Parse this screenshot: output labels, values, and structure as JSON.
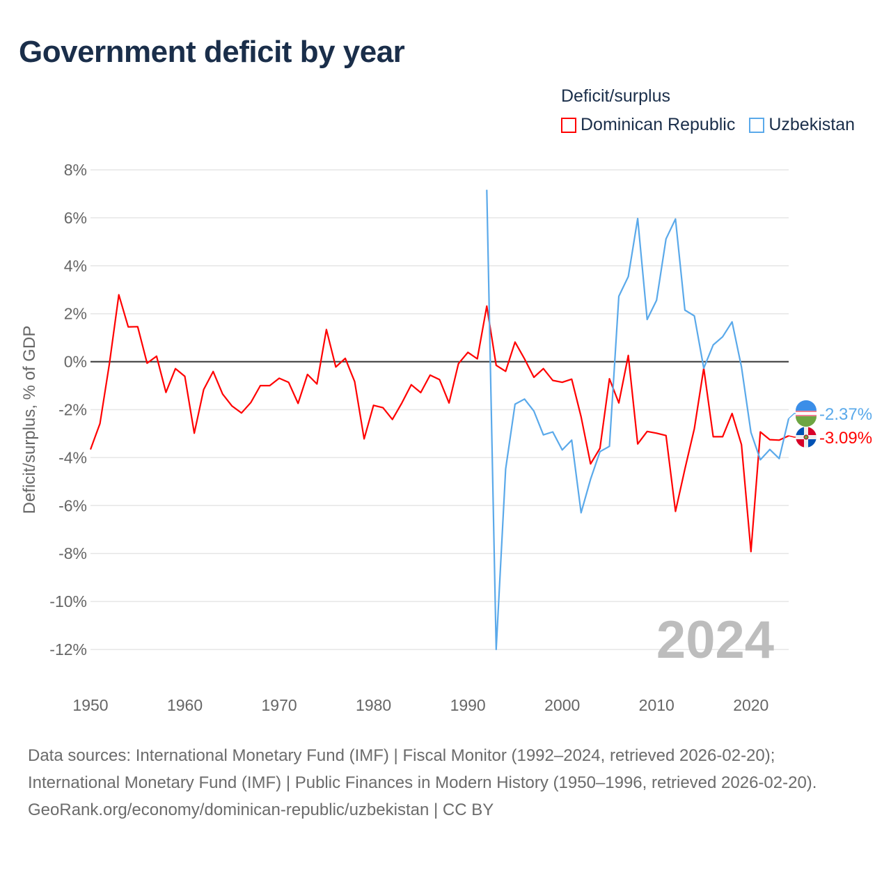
{
  "title": "Government deficit by year",
  "legend": {
    "title": "Deficit/surplus",
    "items": [
      {
        "label": "Dominican Republic",
        "color": "#ff0000"
      },
      {
        "label": "Uzbekistan",
        "color": "#5aa9ea"
      }
    ]
  },
  "watermark_year": "2024",
  "footer": {
    "sources": "Data sources: International Monetary Fund (IMF) | Fiscal Monitor (1992–2024, retrieved 2026-02-20); International Monetary Fund (IMF) | Public Finances in Modern History (1950–1996, retrieved 2026-02-20).",
    "link": "GeoRank.org/economy/dominican-republic/uzbekistan | CC BY"
  },
  "chart_data": {
    "type": "line",
    "title": "Government deficit by year",
    "xlabel": "",
    "ylabel": "Deficit/surplus, % of GDP",
    "xlim": [
      1950,
      2024
    ],
    "ylim": [
      -12,
      8
    ],
    "x_ticks": [
      1950,
      1960,
      1970,
      1980,
      1990,
      2000,
      2010,
      2020
    ],
    "y_ticks": [
      8,
      6,
      4,
      2,
      0,
      -2,
      -4,
      -6,
      -8,
      -10,
      -12
    ],
    "y_tick_labels": [
      "8%",
      "6%",
      "4%",
      "2%",
      "0%",
      "-2%",
      "-4%",
      "-6%",
      "-8%",
      "-10%",
      "-12%"
    ],
    "grid": true,
    "legend_position": "top-right",
    "series": [
      {
        "name": "Dominican Republic",
        "color": "#ff0000",
        "start_year": 1950,
        "end_label": "-3.09%",
        "values": [
          -3.66,
          -2.58,
          -0.1,
          2.79,
          1.45,
          1.46,
          -0.06,
          0.23,
          -1.28,
          -0.29,
          -0.61,
          -2.98,
          -1.16,
          -0.41,
          -1.35,
          -1.85,
          -2.14,
          -1.7,
          -1.0,
          -1.0,
          -0.69,
          -0.86,
          -1.74,
          -0.53,
          -0.93,
          1.34,
          -0.22,
          0.14,
          -0.83,
          -3.22,
          -1.82,
          -1.92,
          -2.41,
          -1.72,
          -0.96,
          -1.29,
          -0.56,
          -0.75,
          -1.72,
          -0.08,
          0.39,
          0.12,
          2.32,
          -0.15,
          -0.4,
          0.82,
          0.12,
          -0.65,
          -0.29,
          -0.78,
          -0.86,
          -0.73,
          -2.3,
          -4.26,
          -3.61,
          -0.71,
          -1.72,
          0.26,
          -3.43,
          -2.91,
          -2.98,
          -3.08,
          -6.24,
          -4.48,
          -2.79,
          -0.27,
          -3.13,
          -3.13,
          -2.16,
          -3.46,
          -7.92,
          -2.93,
          -3.25,
          -3.27,
          -3.09
        ]
      },
      {
        "name": "Uzbekistan",
        "color": "#5aa9ea",
        "start_year": 1992,
        "end_label": "-2.37%",
        "values": [
          7.17,
          -12.0,
          -4.48,
          -1.77,
          -1.56,
          -2.06,
          -3.05,
          -2.93,
          -3.68,
          -3.27,
          -6.3,
          -4.9,
          -3.75,
          -3.53,
          2.73,
          3.55,
          5.97,
          1.76,
          2.56,
          5.12,
          5.95,
          2.15,
          1.91,
          -0.27,
          0.7,
          1.04,
          1.66,
          -0.22,
          -2.95,
          -4.09,
          -3.66,
          -4.04,
          -2.37
        ]
      }
    ]
  }
}
